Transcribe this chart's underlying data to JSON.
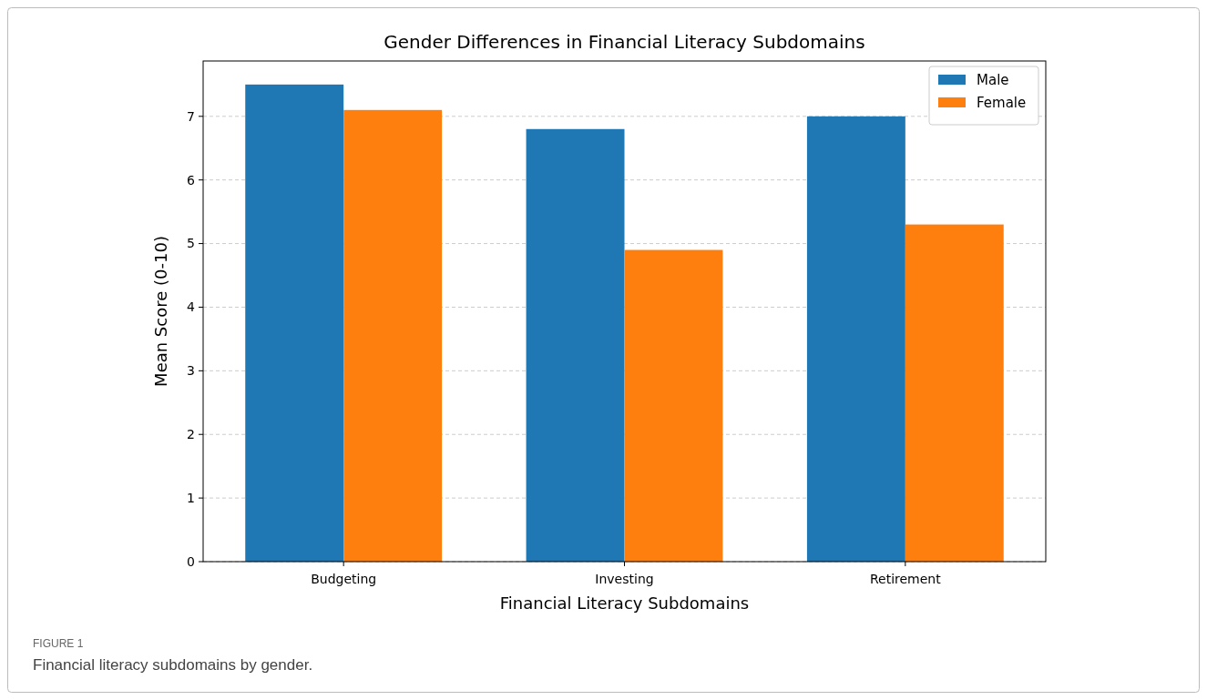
{
  "chart_data": {
    "type": "bar",
    "title": "Gender Differences in Financial Literacy Subdomains",
    "xlabel": "Financial Literacy Subdomains",
    "ylabel": "Mean Score (0-10)",
    "categories": [
      "Budgeting",
      "Investing",
      "Retirement"
    ],
    "series": [
      {
        "name": "Male",
        "color": "#1f77b4",
        "values": [
          7.5,
          6.8,
          7.0
        ]
      },
      {
        "name": "Female",
        "color": "#ff7f0e",
        "values": [
          7.1,
          4.9,
          5.3
        ]
      }
    ],
    "ylim": [
      0,
      7.87
    ],
    "yticks": [
      0,
      1,
      2,
      3,
      4,
      5,
      6,
      7
    ],
    "grid": "y",
    "legend": "top right",
    "annotations": [
      "FIGURE 1",
      "Financial literacy subdomains by gender."
    ]
  }
}
